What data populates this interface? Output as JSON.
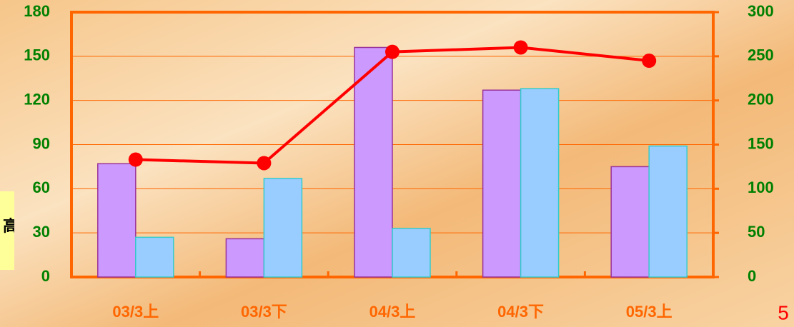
{
  "chart_data": {
    "type": "bar_line",
    "categories": [
      "03/3上",
      "03/3下",
      "04/3上",
      "04/3下",
      "05/3上"
    ],
    "series": [
      {
        "type": "bar",
        "color": "#cc99ff",
        "values": [
          77,
          26,
          156,
          127,
          75
        ]
      },
      {
        "type": "bar",
        "color": "#99ccff",
        "values": [
          27,
          67,
          33,
          128,
          89
        ]
      },
      {
        "type": "line",
        "color": "#ff0000",
        "axis": "y2",
        "values": [
          133,
          129,
          255,
          260,
          245
        ]
      }
    ],
    "ylim": [
      0,
      180
    ],
    "yticks": [
      0,
      30,
      60,
      90,
      120,
      150,
      180
    ],
    "y2lim": [
      0,
      300
    ],
    "y2ticks": [
      0,
      50,
      100,
      150,
      200,
      250,
      300
    ],
    "grid": true,
    "side_label": "高",
    "page_number": "5"
  }
}
